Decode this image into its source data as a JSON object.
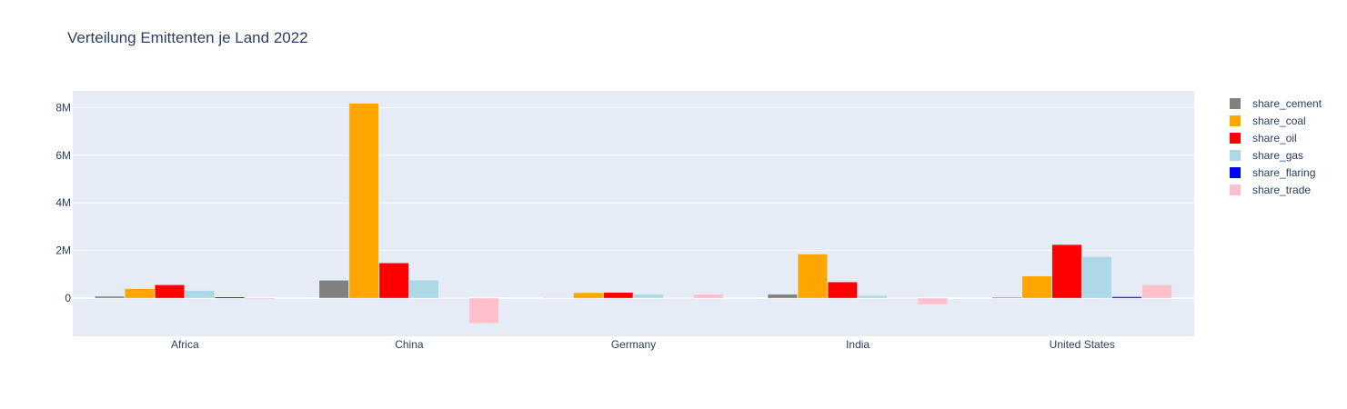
{
  "chart_data": {
    "type": "bar",
    "title": "Verteilung Emittenten je Land 2022",
    "xlabel": "",
    "ylabel": "",
    "categories": [
      "Africa",
      "China",
      "Germany",
      "India",
      "United States"
    ],
    "ylim": [
      -1600000,
      8700000
    ],
    "y_ticks": [
      0,
      2000000,
      4000000,
      6000000,
      8000000
    ],
    "y_tick_labels": [
      "0",
      "2M",
      "4M",
      "6M",
      "8M"
    ],
    "grid": true,
    "legend_position": "top-right",
    "series": [
      {
        "name": "share_cement",
        "color": "#808080",
        "values": [
          80000,
          750000,
          20000,
          160000,
          40000
        ]
      },
      {
        "name": "share_coal",
        "color": "#FFA500",
        "values": [
          400000,
          8180000,
          230000,
          1850000,
          930000
        ]
      },
      {
        "name": "share_oil",
        "color": "#FF0000",
        "values": [
          560000,
          1480000,
          240000,
          680000,
          2250000
        ]
      },
      {
        "name": "share_gas",
        "color": "#ADD8E6",
        "values": [
          320000,
          760000,
          160000,
          110000,
          1740000
        ]
      },
      {
        "name": "share_flaring",
        "color": "#0000FF",
        "values": [
          50000,
          10000,
          5000,
          10000,
          60000
        ]
      },
      {
        "name": "share_trade",
        "color": "#FFC0CB",
        "values": [
          -50000,
          -1060000,
          160000,
          -260000,
          560000
        ]
      }
    ]
  }
}
